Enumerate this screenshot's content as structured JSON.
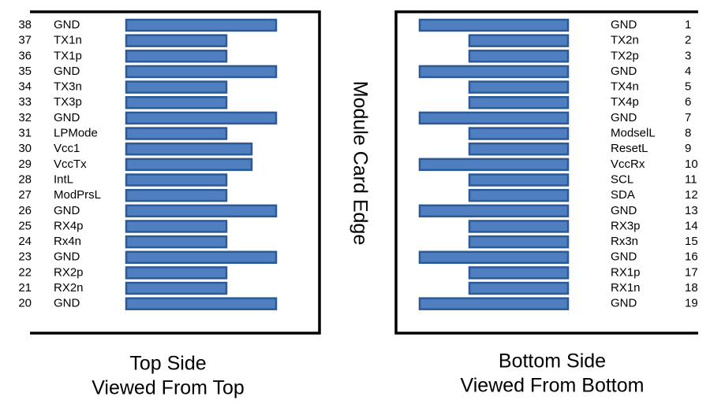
{
  "center_label": "Module Card Edge",
  "top_side": {
    "caption": [
      "Top Side",
      "Viewed From Top"
    ],
    "pins": [
      {
        "number": 38,
        "label": "GND"
      },
      {
        "number": 37,
        "label": "TX1n"
      },
      {
        "number": 36,
        "label": "TX1p"
      },
      {
        "number": 35,
        "label": "GND"
      },
      {
        "number": 34,
        "label": "TX3n"
      },
      {
        "number": 33,
        "label": "TX3p"
      },
      {
        "number": 32,
        "label": "GND"
      },
      {
        "number": 31,
        "label": "LPMode"
      },
      {
        "number": 30,
        "label": "Vcc1"
      },
      {
        "number": 29,
        "label": "VccTx"
      },
      {
        "number": 28,
        "label": "IntL"
      },
      {
        "number": 27,
        "label": "ModPrsL"
      },
      {
        "number": 26,
        "label": "GND"
      },
      {
        "number": 25,
        "label": "RX4p"
      },
      {
        "number": 24,
        "label": "Rx4n"
      },
      {
        "number": 23,
        "label": "GND"
      },
      {
        "number": 22,
        "label": "RX2p"
      },
      {
        "number": 21,
        "label": "RX2n"
      },
      {
        "number": 20,
        "label": "GND"
      }
    ]
  },
  "bottom_side": {
    "caption": [
      "Bottom Side",
      "Viewed From Bottom"
    ],
    "pins": [
      {
        "number": 1,
        "label": "GND"
      },
      {
        "number": 2,
        "label": "TX2n"
      },
      {
        "number": 3,
        "label": "TX2p"
      },
      {
        "number": 4,
        "label": "GND"
      },
      {
        "number": 5,
        "label": "TX4n"
      },
      {
        "number": 6,
        "label": "TX4p"
      },
      {
        "number": 7,
        "label": "GND"
      },
      {
        "number": 8,
        "label": "ModselL"
      },
      {
        "number": 9,
        "label": "ResetL"
      },
      {
        "number": 10,
        "label": "VccRx"
      },
      {
        "number": 11,
        "label": "SCL"
      },
      {
        "number": 12,
        "label": "SDA"
      },
      {
        "number": 13,
        "label": "GND"
      },
      {
        "number": 14,
        "label": "RX3p"
      },
      {
        "number": 15,
        "label": "Rx3n"
      },
      {
        "number": 16,
        "label": "GND"
      },
      {
        "number": 17,
        "label": "RX1p"
      },
      {
        "number": 18,
        "label": "RX1n"
      },
      {
        "number": 19,
        "label": "GND"
      }
    ]
  }
}
